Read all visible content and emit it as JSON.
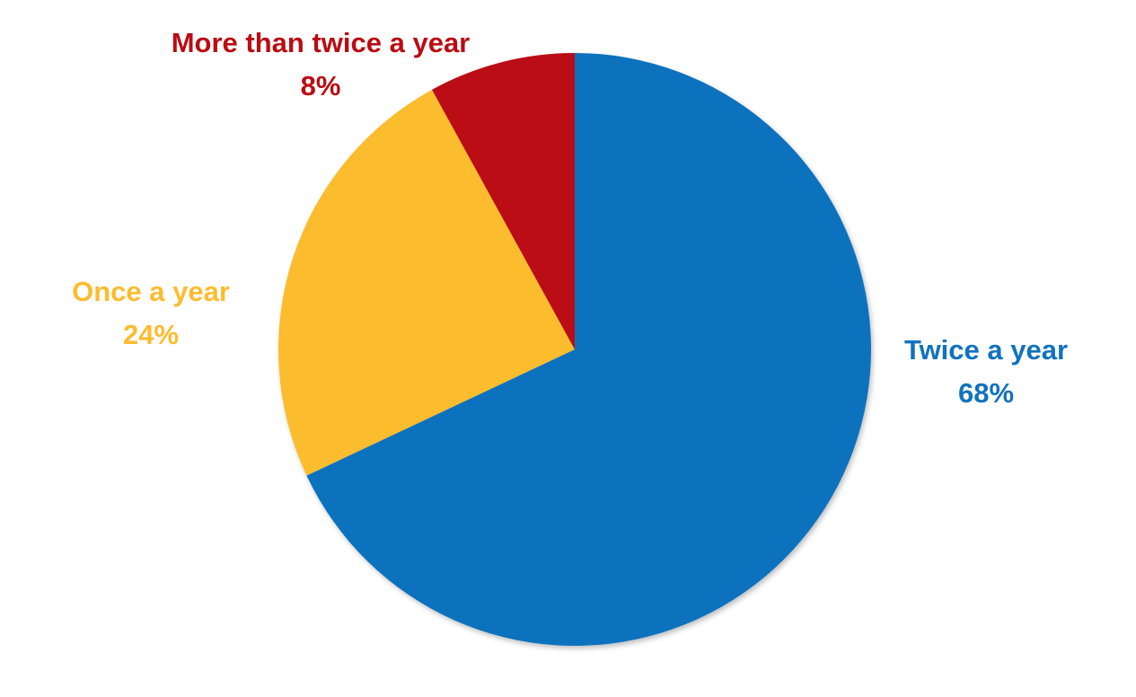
{
  "chart_data": {
    "type": "pie",
    "categories": [
      "Twice a year",
      "Once a year",
      "More than twice a year"
    ],
    "values": [
      68,
      24,
      8
    ],
    "value_labels": [
      "68%",
      "24%",
      "8%"
    ],
    "colors": [
      "#1172be",
      "#fbbc2f",
      "#ba0c13"
    ]
  }
}
